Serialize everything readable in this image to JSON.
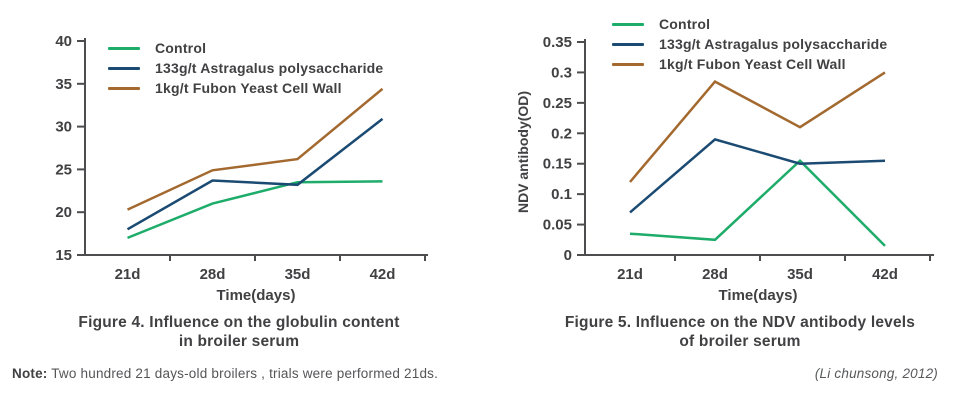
{
  "colors": {
    "text": "#414042",
    "axis": "#4d4d4f",
    "control": "#1eac6a",
    "astragalus": "#1b4a72",
    "fubon": "#a3692f"
  },
  "chart_data": [
    {
      "type": "line",
      "title": "Figure 4. Influence on the globulin content in broiler serum",
      "categories": [
        "21d",
        "28d",
        "35d",
        "42d"
      ],
      "xlabel": "Time(days)",
      "ylabel": "",
      "ylim": [
        15,
        40
      ],
      "grid": false,
      "legend_position": "top-left-inside",
      "yticks": [
        {
          "v": 15,
          "label": "15"
        },
        {
          "v": 20,
          "label": "20"
        },
        {
          "v": 25,
          "label": "25"
        },
        {
          "v": 30,
          "label": "30"
        },
        {
          "v": 35,
          "label": "35"
        },
        {
          "v": 40,
          "label": "40"
        }
      ],
      "series": [
        {
          "name": "Control",
          "color": "#1eac6a",
          "values": [
            17,
            21,
            23.5,
            23.6
          ]
        },
        {
          "name": "133g/t Astragalus polysaccharide",
          "color": "#1b4a72",
          "values": [
            18,
            23.7,
            23.2,
            30.9
          ]
        },
        {
          "name": "1kg/t Fubon Yeast Cell Wall",
          "color": "#a3692f",
          "values": [
            20.3,
            24.9,
            26.2,
            34.4
          ]
        }
      ]
    },
    {
      "type": "line",
      "title": "Figure 5. Influence on the NDV antibody levels of broiler serum",
      "categories": [
        "21d",
        "28d",
        "35d",
        "42d"
      ],
      "xlabel": "Time(days)",
      "ylabel": "NDV antibody(OD)",
      "ylim": [
        0,
        0.35
      ],
      "grid": false,
      "legend_position": "top-left-inside",
      "yticks": [
        {
          "v": 0,
          "label": "0"
        },
        {
          "v": 0.05,
          "label": "0.05"
        },
        {
          "v": 0.1,
          "label": "0.1"
        },
        {
          "v": 0.15,
          "label": "0.15"
        },
        {
          "v": 0.2,
          "label": "0.2"
        },
        {
          "v": 0.25,
          "label": "0.25"
        },
        {
          "v": 0.3,
          "label": "0.3"
        },
        {
          "v": 0.35,
          "label": "0.35"
        }
      ],
      "series": [
        {
          "name": "Control",
          "color": "#1eac6a",
          "values": [
            0.035,
            0.025,
            0.155,
            0.015
          ]
        },
        {
          "name": "133g/t Astragalus polysaccharide",
          "color": "#1b4a72",
          "values": [
            0.07,
            0.19,
            0.15,
            0.155
          ]
        },
        {
          "name": "1kg/t Fubon Yeast Cell Wall",
          "color": "#a3692f",
          "values": [
            0.12,
            0.285,
            0.21,
            0.3
          ]
        }
      ]
    }
  ],
  "figures": [
    {
      "caption_line1": "Figure 4. Influence on the globulin content",
      "caption_line2": "in broiler serum"
    },
    {
      "caption_line1": "Figure 5. Influence on the NDV antibody levels",
      "caption_line2": "of broiler serum"
    }
  ],
  "footer": {
    "note_label": "Note:",
    "note_text": "Two hundred 21 days-old broilers , trials were performed 21ds.",
    "citation": "(Li chunsong, 2012)"
  }
}
